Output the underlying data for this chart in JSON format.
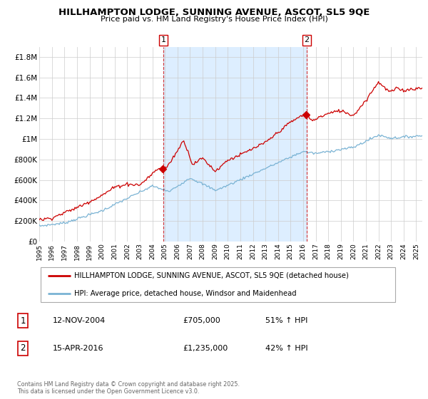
{
  "title": "HILLHAMPTON LODGE, SUNNING AVENUE, ASCOT, SL5 9QE",
  "subtitle": "Price paid vs. HM Land Registry's House Price Index (HPI)",
  "red_label": "HILLHAMPTON LODGE, SUNNING AVENUE, ASCOT, SL5 9QE (detached house)",
  "blue_label": "HPI: Average price, detached house, Windsor and Maidenhead",
  "annotation1_label": "1",
  "annotation1_date": "12-NOV-2004",
  "annotation1_price": "£705,000",
  "annotation1_hpi": "51% ↑ HPI",
  "annotation1_year": 2004.87,
  "annotation1_value": 705000,
  "annotation2_label": "2",
  "annotation2_date": "15-APR-2016",
  "annotation2_price": "£1,235,000",
  "annotation2_hpi": "42% ↑ HPI",
  "annotation2_year": 2016.29,
  "annotation2_value": 1235000,
  "footer": "Contains HM Land Registry data © Crown copyright and database right 2025.\nThis data is licensed under the Open Government Licence v3.0.",
  "ylim": [
    0,
    1900000
  ],
  "yticks": [
    0,
    200000,
    400000,
    600000,
    800000,
    1000000,
    1200000,
    1400000,
    1600000,
    1800000
  ],
  "ytick_labels": [
    "£0",
    "£200K",
    "£400K",
    "£600K",
    "£800K",
    "£1M",
    "£1.2M",
    "£1.4M",
    "£1.6M",
    "£1.8M"
  ],
  "xlim_start": 1995,
  "xlim_end": 2025.5,
  "red_color": "#cc0000",
  "blue_color": "#7ab3d4",
  "shade_color": "#ddeeff",
  "grid_color": "#cccccc",
  "annotation_box_color": "#cc0000",
  "footer_color": "#666666"
}
